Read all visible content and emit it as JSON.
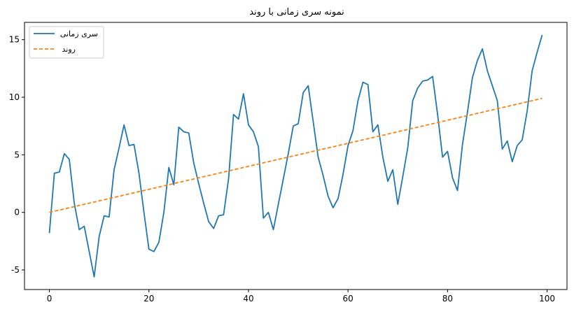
{
  "chart_data": {
    "type": "line",
    "title": "نمونه سری زمانی با روند",
    "xlabel": "",
    "ylabel": "",
    "xlim": [
      -5,
      104
    ],
    "ylim": [
      -6.7,
      16.5
    ],
    "xticks": [
      0,
      20,
      40,
      60,
      80,
      100
    ],
    "yticks": [
      -5,
      0,
      5,
      10,
      15
    ],
    "grid": false,
    "legend_position": "upper-left",
    "series": [
      {
        "name": "سری زمانی",
        "color": "#1f77b4",
        "style": "solid",
        "x": [
          0,
          1,
          2,
          3,
          4,
          5,
          6,
          7,
          8,
          9,
          10,
          11,
          12,
          13,
          14,
          15,
          16,
          17,
          18,
          19,
          20,
          21,
          22,
          23,
          24,
          25,
          26,
          27,
          28,
          29,
          30,
          31,
          32,
          33,
          34,
          35,
          36,
          37,
          38,
          39,
          40,
          41,
          42,
          43,
          44,
          45,
          46,
          47,
          48,
          49,
          50,
          51,
          52,
          53,
          54,
          55,
          56,
          57,
          58,
          59,
          60,
          61,
          62,
          63,
          64,
          65,
          66,
          67,
          68,
          69,
          70,
          71,
          72,
          73,
          74,
          75,
          76,
          77,
          78,
          79,
          80,
          81,
          82,
          83,
          84,
          85,
          86,
          87,
          88,
          89,
          90,
          91,
          92,
          93,
          94,
          95,
          96,
          97,
          98,
          99
        ],
        "y": [
          -1.8,
          3.4,
          3.5,
          5.1,
          4.6,
          0.8,
          -1.5,
          -1.2,
          -3.4,
          -5.6,
          -2.1,
          -0.3,
          -0.4,
          3.7,
          5.6,
          7.6,
          5.8,
          5.9,
          3.4,
          0.0,
          -3.2,
          -3.4,
          -2.6,
          0.0,
          3.9,
          2.4,
          7.4,
          7.0,
          6.9,
          4.3,
          2.5,
          0.8,
          -0.8,
          -1.4,
          -0.3,
          -0.2,
          2.9,
          8.5,
          8.1,
          10.3,
          7.6,
          7.0,
          5.7,
          -0.5,
          0.0,
          -1.5,
          0.7,
          2.9,
          5.1,
          7.5,
          7.7,
          10.4,
          11.0,
          7.9,
          4.8,
          3.2,
          1.4,
          0.4,
          1.2,
          3.3,
          5.8,
          7.1,
          9.7,
          11.3,
          11.1,
          7.0,
          7.6,
          4.8,
          2.7,
          3.7,
          0.7,
          3.1,
          5.6,
          9.7,
          10.8,
          11.4,
          11.5,
          11.8,
          8.5,
          4.8,
          5.3,
          3.0,
          1.9,
          5.9,
          8.7,
          11.7,
          13.2,
          14.2,
          12.3,
          11.0,
          9.7,
          5.5,
          6.2,
          4.4,
          5.8,
          6.3,
          8.8,
          12.3,
          13.9,
          15.4
        ]
      },
      {
        "name": "روند",
        "color": "#ff7f0e",
        "style": "dashed",
        "x": [
          0,
          99
        ],
        "y": [
          0.0,
          9.9
        ]
      }
    ]
  }
}
